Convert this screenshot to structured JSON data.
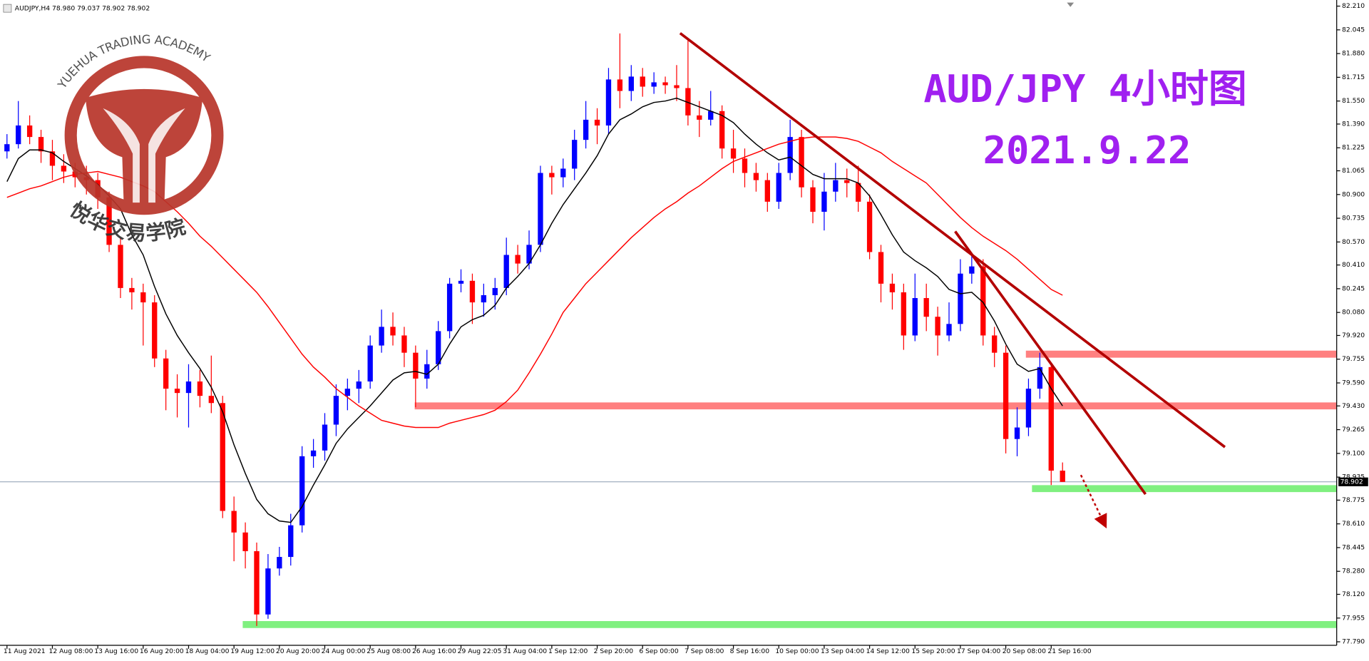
{
  "chart_data": {
    "type": "candlestick",
    "symbol_info": "AUDJPY,H4 78.980 79.037 78.902 78.902",
    "title": "AUD/JPY 4小时图",
    "subtitle": "2021.9.22",
    "up_color": "#0000ff",
    "down_color": "#ff0000",
    "categories": [
      "11 Aug 2021",
      null,
      null,
      null,
      "12 Aug 08:00",
      null,
      null,
      null,
      "13 Aug 16:00",
      null,
      null,
      null,
      "16 Aug 20:00",
      null,
      null,
      null,
      "18 Aug 04:00",
      null,
      null,
      null,
      "19 Aug 12:00",
      null,
      null,
      null,
      "20 Aug 20:00",
      null,
      null,
      null,
      "24 Aug 00:00",
      null,
      null,
      null,
      "25 Aug 08:00",
      null,
      null,
      null,
      "26 Aug 16:00",
      null,
      null,
      null,
      "29 Aug 22:05",
      null,
      null,
      null,
      "31 Aug 04:00",
      null,
      null,
      null,
      "1 Sep 12:00",
      null,
      null,
      null,
      "2 Sep 20:00",
      null,
      null,
      null,
      "6 Sep 00:00",
      null,
      null,
      null,
      "7 Sep 08:00",
      null,
      null,
      null,
      "8 Sep 16:00",
      null,
      null,
      null,
      "10 Sep 00:00",
      null,
      null,
      null,
      "13 Sep 04:00",
      null,
      null,
      null,
      "14 Sep 12:00",
      null,
      null,
      null,
      "15 Sep 20:00",
      null,
      null,
      null,
      "17 Sep 04:00",
      null,
      null,
      null,
      "20 Sep 08:00",
      null,
      null,
      null,
      "21 Sep 16:00",
      null
    ],
    "open": [
      81.2,
      81.25,
      81.38,
      81.3,
      81.2,
      81.1,
      81.06,
      81.02,
      81.0,
      80.88,
      80.55,
      80.25,
      80.22,
      80.15,
      79.76,
      79.55,
      79.52,
      79.6,
      79.5,
      79.45,
      78.7,
      78.55,
      78.42,
      77.98,
      78.3,
      78.38,
      78.6,
      79.08,
      79.12,
      79.3,
      79.5,
      79.55,
      79.6,
      79.85,
      79.98,
      79.92,
      79.8,
      79.62,
      79.72,
      79.95,
      80.28,
      80.3,
      80.15,
      80.2,
      80.25,
      80.48,
      80.42,
      80.55,
      81.05,
      81.02,
      81.08,
      81.28,
      81.42,
      81.38,
      81.7,
      81.62,
      81.72,
      81.65,
      81.68,
      81.66,
      81.64,
      81.45,
      81.42,
      81.48,
      81.22,
      81.15,
      81.05,
      81.0,
      80.85,
      81.05,
      81.3,
      80.95,
      80.78,
      80.92,
      81.0,
      80.98,
      80.85,
      80.5,
      80.28,
      80.22,
      79.92,
      80.18,
      80.05,
      79.92,
      80.0,
      80.35,
      80.4,
      79.92,
      79.8,
      79.2,
      79.28,
      79.55,
      79.7,
      78.98
    ],
    "high": [
      81.32,
      81.55,
      81.45,
      81.35,
      81.28,
      81.18,
      81.12,
      81.1,
      81.05,
      80.92,
      80.6,
      80.32,
      80.28,
      80.2,
      79.82,
      79.65,
      79.72,
      79.68,
      79.78,
      79.5,
      78.8,
      78.62,
      78.48,
      78.4,
      78.45,
      78.68,
      79.15,
      79.2,
      79.38,
      79.58,
      79.62,
      79.68,
      79.92,
      80.1,
      80.08,
      79.98,
      79.85,
      79.82,
      80.02,
      80.32,
      80.38,
      80.35,
      80.28,
      80.32,
      80.6,
      80.55,
      80.65,
      81.1,
      81.1,
      81.15,
      81.35,
      81.55,
      81.5,
      81.78,
      82.02,
      81.8,
      81.78,
      81.75,
      81.72,
      81.8,
      81.98,
      81.55,
      81.62,
      81.52,
      81.35,
      81.22,
      81.12,
      81.05,
      81.12,
      81.42,
      81.35,
      81.0,
      81.05,
      81.12,
      81.08,
      81.1,
      80.9,
      80.55,
      80.35,
      80.28,
      80.35,
      80.28,
      80.12,
      80.15,
      80.45,
      80.48,
      80.45,
      79.98,
      79.85,
      79.42,
      79.62,
      79.8,
      79.72,
      79.037
    ],
    "low": [
      81.15,
      81.22,
      81.25,
      81.12,
      81.0,
      80.98,
      80.95,
      80.9,
      80.8,
      80.5,
      80.18,
      80.1,
      79.85,
      79.7,
      79.4,
      79.35,
      79.28,
      79.42,
      79.38,
      78.65,
      78.35,
      78.3,
      77.9,
      77.95,
      78.25,
      78.32,
      78.55,
      79.0,
      79.05,
      79.22,
      79.4,
      79.45,
      79.55,
      79.8,
      79.85,
      79.7,
      79.42,
      79.55,
      79.68,
      79.9,
      80.22,
      80.0,
      80.05,
      80.1,
      80.2,
      80.35,
      80.38,
      80.5,
      80.9,
      80.95,
      81.0,
      81.22,
      81.25,
      81.32,
      81.5,
      81.55,
      81.58,
      81.6,
      81.6,
      81.55,
      81.38,
      81.3,
      81.38,
      81.15,
      81.05,
      80.95,
      80.92,
      80.78,
      80.8,
      81.0,
      80.88,
      80.7,
      80.65,
      80.85,
      80.88,
      80.78,
      80.45,
      80.15,
      80.1,
      79.82,
      79.88,
      79.95,
      79.78,
      79.88,
      79.95,
      80.28,
      79.85,
      79.7,
      79.1,
      79.08,
      79.22,
      79.48,
      78.88,
      78.902
    ],
    "close": [
      81.25,
      81.38,
      81.3,
      81.2,
      81.1,
      81.06,
      81.02,
      81.0,
      80.88,
      80.55,
      80.25,
      80.22,
      80.15,
      79.76,
      79.55,
      79.52,
      79.6,
      79.5,
      79.45,
      78.7,
      78.55,
      78.42,
      77.98,
      78.3,
      78.38,
      78.6,
      79.08,
      79.12,
      79.3,
      79.5,
      79.55,
      79.6,
      79.85,
      79.98,
      79.92,
      79.8,
      79.62,
      79.72,
      79.95,
      80.28,
      80.3,
      80.15,
      80.2,
      80.25,
      80.48,
      80.42,
      80.55,
      81.05,
      81.02,
      81.08,
      81.28,
      81.42,
      81.38,
      81.7,
      81.62,
      81.72,
      81.65,
      81.68,
      81.66,
      81.64,
      81.45,
      81.42,
      81.48,
      81.22,
      81.15,
      81.05,
      81.0,
      80.85,
      81.05,
      81.3,
      80.95,
      80.78,
      80.92,
      81.0,
      80.98,
      80.85,
      80.5,
      80.28,
      80.22,
      79.92,
      80.18,
      80.05,
      79.92,
      80.0,
      80.35,
      80.4,
      79.92,
      79.8,
      79.2,
      79.28,
      79.55,
      79.7,
      78.98,
      78.902
    ],
    "series": [
      {
        "color": "#000000",
        "values": [
          80.99,
          81.15,
          81.21,
          81.21,
          81.19,
          81.13,
          81.08,
          81.03,
          80.97,
          80.89,
          80.8,
          80.62,
          80.48,
          80.26,
          80.07,
          79.92,
          79.8,
          79.69,
          79.56,
          79.39,
          79.16,
          78.96,
          78.78,
          78.68,
          78.63,
          78.62,
          78.73,
          78.88,
          79.02,
          79.17,
          79.27,
          79.35,
          79.43,
          79.52,
          79.61,
          79.66,
          79.67,
          79.65,
          79.72,
          79.86,
          79.98,
          80.03,
          80.06,
          80.13,
          80.25,
          80.33,
          80.42,
          80.55,
          80.7,
          80.83,
          80.94,
          81.05,
          81.17,
          81.32,
          81.42,
          81.46,
          81.51,
          81.54,
          81.55,
          81.57,
          81.54,
          81.51,
          81.48,
          81.45,
          81.4,
          81.32,
          81.25,
          81.19,
          81.14,
          81.16,
          81.1,
          81.04,
          81.01,
          81.01,
          81.01,
          80.98,
          80.89,
          80.76,
          80.62,
          80.5,
          80.44,
          80.39,
          80.33,
          80.24,
          80.21,
          80.22,
          80.15,
          80.02,
          79.86,
          79.72,
          79.67,
          79.69,
          79.55,
          79.43
        ]
      },
      {
        "color": "#ff0000",
        "values": [
          80.88,
          80.91,
          80.94,
          80.96,
          80.99,
          81.02,
          81.04,
          81.05,
          81.06,
          81.04,
          81.02,
          80.99,
          80.96,
          80.92,
          80.85,
          80.78,
          80.7,
          80.61,
          80.54,
          80.46,
          80.38,
          80.3,
          80.22,
          80.12,
          80.01,
          79.9,
          79.79,
          79.7,
          79.63,
          79.55,
          79.49,
          79.43,
          79.38,
          79.33,
          79.31,
          79.29,
          79.28,
          79.28,
          79.28,
          79.31,
          79.33,
          79.35,
          79.37,
          79.4,
          79.46,
          79.54,
          79.66,
          79.79,
          79.93,
          80.08,
          80.18,
          80.28,
          80.36,
          80.44,
          80.52,
          80.6,
          80.67,
          80.74,
          80.8,
          80.85,
          80.91,
          80.96,
          81.02,
          81.08,
          81.13,
          81.16,
          81.19,
          81.22,
          81.25,
          81.27,
          81.29,
          81.3,
          81.3,
          81.3,
          81.29,
          81.27,
          81.23,
          81.19,
          81.13,
          81.08,
          81.03,
          80.98,
          80.9,
          80.82,
          80.74,
          80.67,
          80.61,
          80.56,
          80.51,
          80.45,
          80.38,
          80.31,
          80.24,
          80.2
        ]
      }
    ],
    "levels": [
      {
        "value": 79.79,
        "color": "#ff8080"
      },
      {
        "value": 79.43,
        "color": "#ff8080"
      },
      {
        "value": 78.855,
        "color": "#80f080"
      },
      {
        "value": 77.91,
        "color": "#80f080"
      }
    ],
    "current_price": 78.902,
    "ylim": [
      77.79,
      82.21
    ],
    "yticks": [
      {
        "value": 82.21,
        "label": "82.210"
      },
      82.045,
      {
        "value": 81.88,
        "label": "81.880"
      },
      81.715,
      {
        "value": 81.55,
        "label": "81.550"
      },
      {
        "value": 81.39,
        "label": "81.390"
      },
      81.225,
      81.065,
      {
        "value": 80.9,
        "label": "80.900"
      },
      80.735,
      {
        "value": 80.57,
        "label": "80.570"
      },
      {
        "value": 80.41,
        "label": "80.410"
      },
      80.245,
      {
        "value": 80.08,
        "label": "80.080"
      },
      {
        "value": 79.92,
        "label": "79.920"
      },
      79.755,
      {
        "value": 79.59,
        "label": "79.590"
      },
      {
        "value": 79.43,
        "label": "79.430"
      },
      79.265,
      {
        "value": 79.1,
        "label": "79.100"
      },
      78.935,
      78.775,
      {
        "value": 78.61,
        "label": "78.610"
      },
      78.445,
      {
        "value": 78.28,
        "label": "78.280"
      },
      {
        "value": 78.12,
        "label": "78.120"
      },
      77.955,
      {
        "value": 77.79,
        "label": "77.790"
      }
    ]
  },
  "logo": {
    "english": "YUEHUA TRADING ACADEMY",
    "chinese": "悦华交易学院"
  }
}
